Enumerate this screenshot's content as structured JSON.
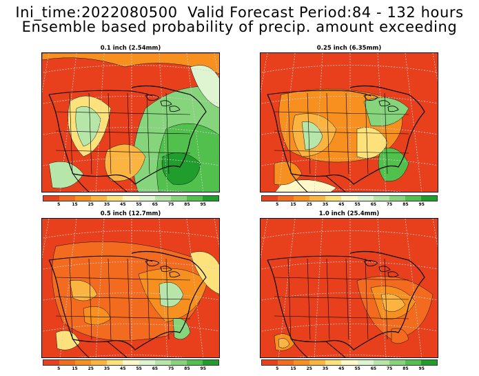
{
  "header": {
    "line1": "Ini_time:2022080500  Valid Forecast Period:84 - 132 hours",
    "line2": "Ensemble based probability of precip. amount exceeding"
  },
  "panels": [
    {
      "title": "0.1 inch (2.54mm)",
      "wetness": "high"
    },
    {
      "title": "0.25 inch (6.35mm)",
      "wetness": "medium"
    },
    {
      "title": "0.5 inch (12.7mm)",
      "wetness": "low"
    },
    {
      "title": "1.0 inch (25.4mm)",
      "wetness": "very-low"
    }
  ],
  "colorbar": {
    "colors": [
      "#e8401c",
      "#f26b1f",
      "#f7901e",
      "#fbb43f",
      "#fde27c",
      "#fff8c8",
      "#dff5d2",
      "#b6e7a8",
      "#86d57c",
      "#52c04c",
      "#1f9e2e"
    ],
    "labels": [
      "5",
      "15",
      "25",
      "35",
      "45",
      "55",
      "65",
      "75",
      "85",
      "95"
    ]
  }
}
